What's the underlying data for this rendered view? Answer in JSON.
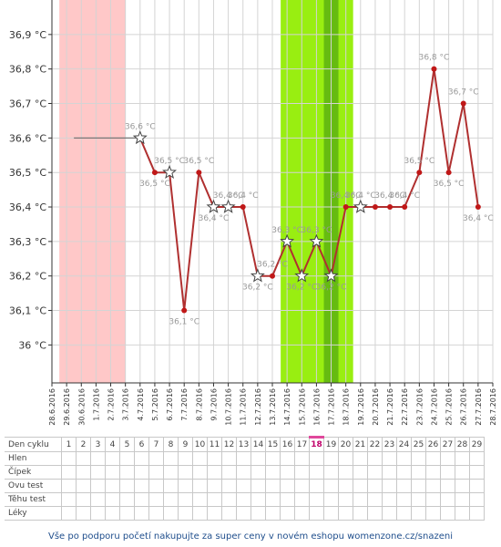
{
  "chart_data": {
    "type": "line",
    "title": "",
    "xlabel": "",
    "ylabel": "",
    "ylim": [
      35.89,
      37.0
    ],
    "yticks": [
      "36 °C",
      "36,1 °C",
      "36,2 °C",
      "36,3 °C",
      "36,4 °C",
      "36,5 °C",
      "36,6 °C",
      "36,7 °C",
      "36,8 °C",
      "36,9 °C"
    ],
    "x_dates": [
      "28.6.2016",
      "29.6.2016",
      "30.6.2016",
      "1.7.2016",
      "2.7.2016",
      "3.7.2016",
      "4.7.2016",
      "5.7.2016",
      "6.7.2016",
      "7.7.2016",
      "8.7.2016",
      "9.7.2016",
      "10.7.2016",
      "11.7.2016",
      "12.7.2016",
      "13.7.2016",
      "14.7.2016",
      "15.7.2016",
      "16.7.2016",
      "17.7.2016",
      "18.7.2016",
      "19.7.2016",
      "20.7.2016",
      "21.7.2016",
      "22.7.2016",
      "23.7.2016",
      "24.7.2016",
      "25.7.2016",
      "26.7.2016",
      "27.7.2016",
      "28.7.2016"
    ],
    "baseline": {
      "from": "29.6.2016",
      "to": "3.7.2016",
      "value": 36.6
    },
    "pink_band": [
      "29.6.2016",
      "3.7.2016"
    ],
    "green_band": [
      "14.7.2016",
      "18.7.2016"
    ],
    "green_band_dark": [
      "17.7.2016",
      "17.7.2016"
    ],
    "colors": {
      "line": "#b03030",
      "marker": "#c01818",
      "pink": "#ffc8c8",
      "green": "#99ee11",
      "green_dark": "#66bb11",
      "grid": "#d4d4d4",
      "label": "#999999"
    },
    "series": [
      {
        "values": [
          {
            "x": "4.7.2016",
            "y": 36.6,
            "label": "36,6 °C",
            "star": true
          },
          {
            "x": "5.7.2016",
            "y": 36.5,
            "label": "36,5 °C",
            "star": false
          },
          {
            "x": "6.7.2016",
            "y": 36.5,
            "label": "36,5 °C",
            "star": true
          },
          {
            "x": "7.7.2016",
            "y": 36.1,
            "label": "36,1 °C",
            "star": false
          },
          {
            "x": "8.7.2016",
            "y": 36.5,
            "label": "36,5 °C",
            "star": false
          },
          {
            "x": "9.7.2016",
            "y": 36.4,
            "label": "36,4 °C",
            "star": true
          },
          {
            "x": "10.7.2016",
            "y": 36.4,
            "label": "36,4 °C",
            "star": true
          },
          {
            "x": "11.7.2016",
            "y": 36.4,
            "label": "36,4 °C",
            "star": false
          },
          {
            "x": "12.7.2016",
            "y": 36.2,
            "label": "36,2 °C",
            "star": true
          },
          {
            "x": "13.7.2016",
            "y": 36.2,
            "label": "36,2 °C",
            "star": false
          },
          {
            "x": "14.7.2016",
            "y": 36.3,
            "label": "36,3 °C",
            "star": true
          },
          {
            "x": "15.7.2016",
            "y": 36.2,
            "label": "36,2 °C",
            "star": true
          },
          {
            "x": "16.7.2016",
            "y": 36.3,
            "label": "36,3 °C",
            "star": true
          },
          {
            "x": "17.7.2016",
            "y": 36.2,
            "label": "36,2 °C",
            "star": true
          },
          {
            "x": "18.7.2016",
            "y": 36.4,
            "label": "36,4 °C",
            "star": false
          },
          {
            "x": "19.7.2016",
            "y": 36.4,
            "label": "36,4 °C",
            "star": true
          },
          {
            "x": "20.7.2016",
            "y": 36.4,
            "label": "",
            "star": false
          },
          {
            "x": "21.7.2016",
            "y": 36.4,
            "label": "36,4 °C",
            "star": false
          },
          {
            "x": "22.7.2016",
            "y": 36.4,
            "label": "36,4 °C",
            "star": false
          },
          {
            "x": "23.7.2016",
            "y": 36.5,
            "label": "36,5 °C",
            "star": false
          },
          {
            "x": "24.7.2016",
            "y": 36.8,
            "label": "36,8 °C",
            "star": false
          },
          {
            "x": "25.7.2016",
            "y": 36.5,
            "label": "36,5 °C",
            "star": false
          },
          {
            "x": "26.7.2016",
            "y": 36.7,
            "label": "36,7 °C",
            "star": false
          },
          {
            "x": "27.7.2016",
            "y": 36.4,
            "label": "36,4 °C",
            "star": false
          }
        ]
      }
    ]
  },
  "cycle_table": {
    "header_label": "Den cyklu",
    "days": [
      "1",
      "2",
      "3",
      "4",
      "5",
      "6",
      "7",
      "8",
      "9",
      "10",
      "11",
      "12",
      "13",
      "14",
      "15",
      "16",
      "17",
      "18",
      "19",
      "20",
      "21",
      "22",
      "23",
      "24",
      "25",
      "26",
      "27",
      "28",
      "29"
    ],
    "highlight_day": "18",
    "rows": [
      "Hlen",
      "Čípek",
      "Ovu test",
      "Těhu test",
      "Léky"
    ]
  },
  "footer": {
    "text": "Vše po podporu početí nakupujte za super ceny v novém eshopu womenzone.cz/snazeni"
  }
}
